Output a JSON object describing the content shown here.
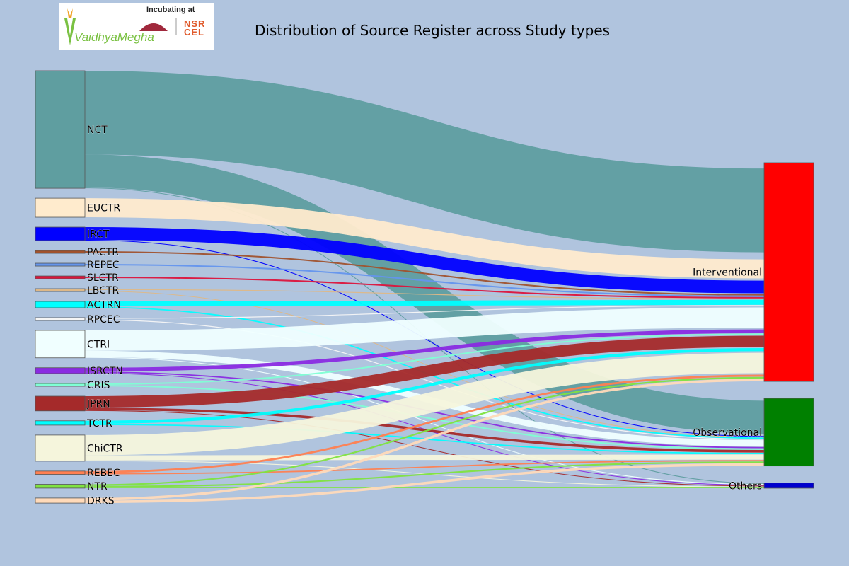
{
  "logo": {
    "brand_name": "VaidhyaMegha",
    "incubating_text": "Incubating at",
    "partner_lines": [
      "NSR",
      "CEL"
    ],
    "colors": {
      "brand": "#7ac142",
      "accent": "#f0a020",
      "partner": "#e05a2b",
      "iim": "#a0283c"
    }
  },
  "chart_data": {
    "type": "sankey",
    "title": "Distribution of Source Register across Study types",
    "sources": [
      {
        "name": "NCT",
        "color": "#5f9ea0"
      },
      {
        "name": "EUCTR",
        "color": "#ffebcd"
      },
      {
        "name": "IRCT",
        "color": "#0000ff"
      },
      {
        "name": "PACTR",
        "color": "#a0522d"
      },
      {
        "name": "REPEC",
        "color": "#6495ed"
      },
      {
        "name": "SLCTR",
        "color": "#dc143c"
      },
      {
        "name": "LBCTR",
        "color": "#deb887"
      },
      {
        "name": "ACTRN",
        "color": "#00ffff"
      },
      {
        "name": "RPCEC",
        "color": "#f5f5f5"
      },
      {
        "name": "CTRI",
        "color": "#f0ffff"
      },
      {
        "name": "ISRCTN",
        "color": "#8a2be2"
      },
      {
        "name": "CRIS",
        "color": "#7fffd4"
      },
      {
        "name": "JPRN",
        "color": "#a52a2a"
      },
      {
        "name": "TCTR",
        "color": "#00ffff"
      },
      {
        "name": "ChiCTR",
        "color": "#f5f5dc"
      },
      {
        "name": "REBEC",
        "color": "#ff7f50"
      },
      {
        "name": "NTR",
        "color": "#7fe340"
      },
      {
        "name": "DRKS",
        "color": "#ffdab9"
      }
    ],
    "targets": [
      {
        "name": "Interventional",
        "color": "#ff0000"
      },
      {
        "name": "Observational",
        "color": "#008000"
      },
      {
        "name": "Others",
        "color": "#0000cd"
      }
    ],
    "flows": [
      {
        "source": "NCT",
        "target": "Interventional",
        "value": 33.0
      },
      {
        "source": "NCT",
        "target": "Observational",
        "value": 13.0
      },
      {
        "source": "NCT",
        "target": "Others",
        "value": 0.3
      },
      {
        "source": "EUCTR",
        "target": "Interventional",
        "value": 7.5
      },
      {
        "source": "IRCT",
        "target": "Interventional",
        "value": 5.0
      },
      {
        "source": "IRCT",
        "target": "Observational",
        "value": 0.3
      },
      {
        "source": "PACTR",
        "target": "Interventional",
        "value": 0.5
      },
      {
        "source": "REPEC",
        "target": "Interventional",
        "value": 0.5
      },
      {
        "source": "SLCTR",
        "target": "Interventional",
        "value": 0.5
      },
      {
        "source": "LBCTR",
        "target": "Interventional",
        "value": 0.3
      },
      {
        "source": "LBCTR",
        "target": "Observational",
        "value": 0.2
      },
      {
        "source": "ACTRN",
        "target": "Interventional",
        "value": 2.0
      },
      {
        "source": "ACTRN",
        "target": "Observational",
        "value": 0.5
      },
      {
        "source": "RPCEC",
        "target": "Interventional",
        "value": 0.3
      },
      {
        "source": "RPCEC",
        "target": "Observational",
        "value": 0.3
      },
      {
        "source": "CTRI",
        "target": "Interventional",
        "value": 8.0
      },
      {
        "source": "CTRI",
        "target": "Observational",
        "value": 2.5
      },
      {
        "source": "CTRI",
        "target": "Others",
        "value": 0.3
      },
      {
        "source": "ISRCTN",
        "target": "Interventional",
        "value": 1.5
      },
      {
        "source": "ISRCTN",
        "target": "Observational",
        "value": 0.5
      },
      {
        "source": "ISRCTN",
        "target": "Others",
        "value": 0.3
      },
      {
        "source": "CRIS",
        "target": "Interventional",
        "value": 0.5
      },
      {
        "source": "CRIS",
        "target": "Observational",
        "value": 0.5
      },
      {
        "source": "JPRN",
        "target": "Interventional",
        "value": 4.5
      },
      {
        "source": "JPRN",
        "target": "Observational",
        "value": 1.0
      },
      {
        "source": "JPRN",
        "target": "Others",
        "value": 0.3
      },
      {
        "source": "TCTR",
        "target": "Interventional",
        "value": 1.2
      },
      {
        "source": "TCTR",
        "target": "Observational",
        "value": 0.5
      },
      {
        "source": "ChiCTR",
        "target": "Interventional",
        "value": 8.0
      },
      {
        "source": "ChiCTR",
        "target": "Observational",
        "value": 2.0
      },
      {
        "source": "ChiCTR",
        "target": "Others",
        "value": 0.3
      },
      {
        "source": "REBEC",
        "target": "Interventional",
        "value": 0.8
      },
      {
        "source": "REBEC",
        "target": "Observational",
        "value": 0.5
      },
      {
        "source": "NTR",
        "target": "Interventional",
        "value": 0.6
      },
      {
        "source": "NTR",
        "target": "Observational",
        "value": 0.6
      },
      {
        "source": "NTR",
        "target": "Others",
        "value": 0.3
      },
      {
        "source": "DRKS",
        "target": "Interventional",
        "value": 1.0
      },
      {
        "source": "DRKS",
        "target": "Observational",
        "value": 1.0
      }
    ]
  }
}
